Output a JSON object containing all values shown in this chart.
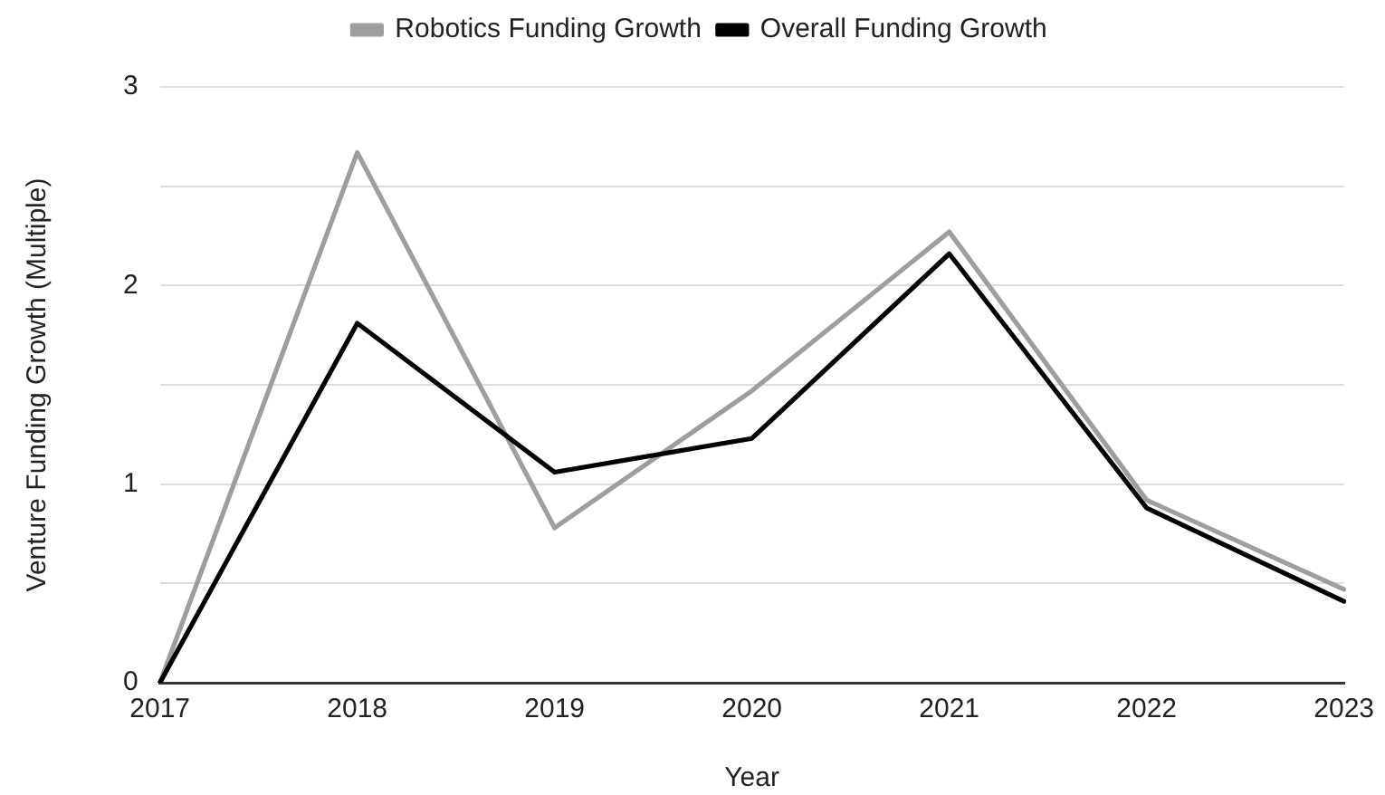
{
  "chart_data": {
    "type": "line",
    "xlabel": "Year",
    "ylabel": "Venture Funding Growth (Multiple)",
    "categories": [
      "2017",
      "2018",
      "2019",
      "2020",
      "2021",
      "2022",
      "2023"
    ],
    "series": [
      {
        "name": "Robotics Funding Growth",
        "color": "#9e9e9e",
        "values": [
          0,
          2.67,
          0.78,
          1.47,
          2.27,
          0.92,
          0.47
        ]
      },
      {
        "name": "Overall Funding Growth",
        "color": "#000000",
        "values": [
          0,
          1.81,
          1.06,
          1.23,
          2.16,
          0.88,
          0.41
        ]
      }
    ],
    "ylim": [
      0,
      3
    ],
    "yticks": [
      0,
      {
        "value": 0.5,
        "label": null
      },
      1,
      {
        "value": 1.5,
        "label": null
      },
      2,
      {
        "value": 2.5,
        "label": null
      },
      3
    ],
    "grid": "y",
    "legend": "top"
  }
}
